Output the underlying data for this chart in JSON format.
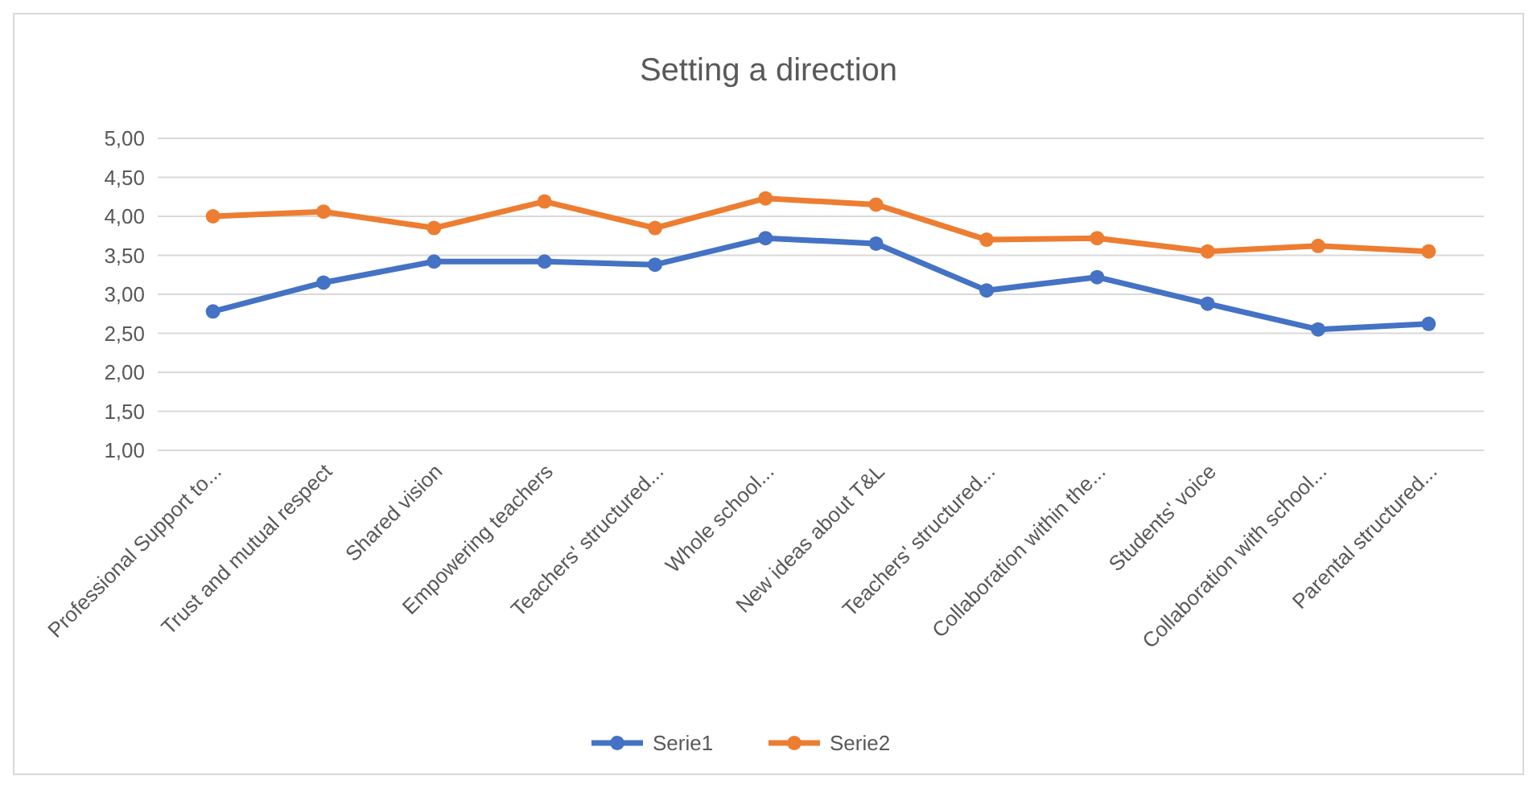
{
  "chart_data": {
    "type": "line",
    "title": "Setting a direction",
    "categories": [
      "Professional Support to...",
      "Trust and mutual respect",
      "Shared vision",
      "Empowering teachers",
      "Teachers' structured...",
      "Whole school...",
      "New ideas about T&L",
      "Teachers' structured...",
      "Collaboration within the...",
      "Students' voice",
      "Collaboration with school...",
      "Parental structured..."
    ],
    "series": [
      {
        "name": "Serie1",
        "color": "#4472c4",
        "values": [
          2.78,
          3.15,
          3.42,
          3.42,
          3.38,
          3.72,
          3.65,
          3.05,
          3.22,
          2.88,
          2.55,
          2.62
        ]
      },
      {
        "name": "Serie2",
        "color": "#ed7d31",
        "values": [
          4.0,
          4.06,
          3.85,
          4.19,
          3.85,
          4.23,
          4.15,
          3.7,
          3.72,
          3.55,
          3.62,
          3.55
        ]
      }
    ],
    "ylim": [
      1,
      5
    ],
    "yticks": [
      {
        "value": 1,
        "label": "1,00"
      },
      {
        "value": 1.5,
        "label": "1,50"
      },
      {
        "value": 2,
        "label": "2,00"
      },
      {
        "value": 2.5,
        "label": "2,50"
      },
      {
        "value": 3,
        "label": "3,00"
      },
      {
        "value": 3.5,
        "label": "3,50"
      },
      {
        "value": 4,
        "label": "4,00"
      },
      {
        "value": 4.5,
        "label": "4,50"
      },
      {
        "value": 5,
        "label": "5,00"
      }
    ],
    "grid": "y",
    "legend": "bottom",
    "marker": "circle",
    "line_style": "solid"
  }
}
